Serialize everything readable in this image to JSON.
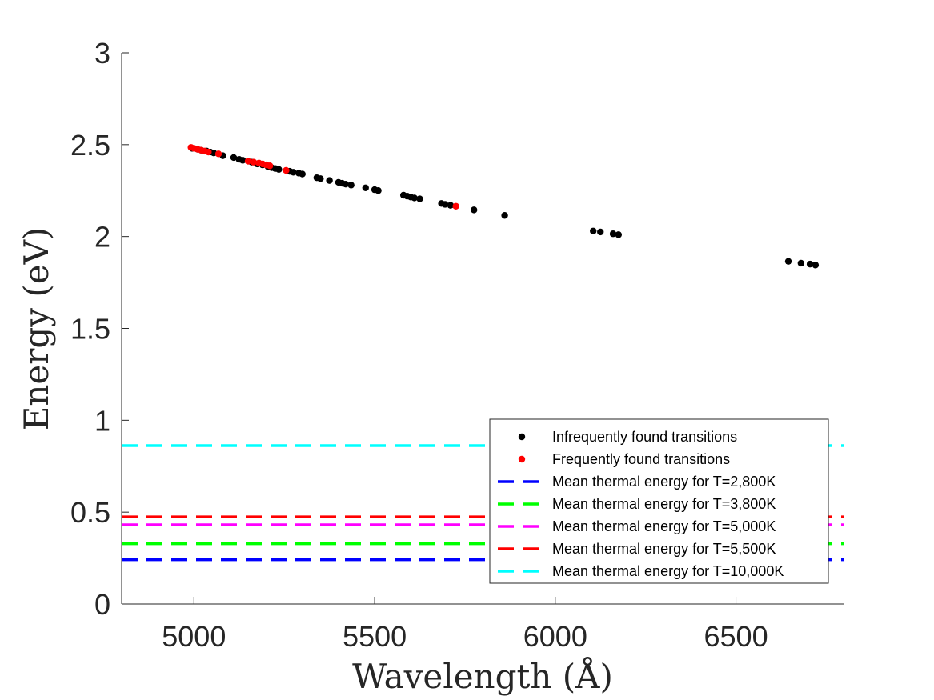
{
  "chart_data": {
    "type": "scatter",
    "title": "",
    "xlabel": "Wavelength (Å)",
    "ylabel": "Energy (eV)",
    "xlim": [
      4800,
      6800
    ],
    "ylim": [
      0,
      3
    ],
    "xticks": [
      5000,
      5500,
      6000,
      6500
    ],
    "yticks": [
      0,
      0.5,
      1,
      1.5,
      2,
      2.5,
      3
    ],
    "xtick_labels": [
      "5000",
      "5500",
      "6000",
      "6500"
    ],
    "ytick_labels": [
      "0",
      "0.5",
      "1",
      "1.5",
      "2",
      "2.5",
      "3"
    ],
    "grid": false,
    "legend_position": "bottom-right",
    "series": [
      {
        "name": "Infrequently found transitions",
        "kind": "scatter",
        "color": "#000000",
        "x": [
          4995,
          5010,
          5020,
          5035,
          5045,
          5055,
          5080,
          5110,
          5125,
          5135,
          5160,
          5175,
          5190,
          5205,
          5215,
          5225,
          5235,
          5265,
          5275,
          5290,
          5300,
          5340,
          5350,
          5375,
          5400,
          5410,
          5420,
          5435,
          5475,
          5500,
          5510,
          5580,
          5590,
          5600,
          5610,
          5625,
          5685,
          5695,
          5710,
          5775,
          5860,
          6105,
          6125,
          6160,
          6175,
          6645,
          6680,
          6705,
          6720
        ],
        "y": [
          2.48,
          2.475,
          2.47,
          2.465,
          2.46,
          2.455,
          2.44,
          2.43,
          2.42,
          2.415,
          2.405,
          2.395,
          2.39,
          2.38,
          2.375,
          2.37,
          2.365,
          2.355,
          2.35,
          2.345,
          2.34,
          2.32,
          2.315,
          2.305,
          2.295,
          2.29,
          2.285,
          2.28,
          2.265,
          2.255,
          2.25,
          2.225,
          2.22,
          2.215,
          2.21,
          2.205,
          2.18,
          2.175,
          2.17,
          2.145,
          2.115,
          2.03,
          2.025,
          2.015,
          2.01,
          1.865,
          1.855,
          1.85,
          1.845
        ]
      },
      {
        "name": "Frequently found transitions",
        "kind": "scatter",
        "color": "#ff0000",
        "x": [
          4992,
          5000,
          5010,
          5020,
          5030,
          5040,
          5068,
          5150,
          5165,
          5180,
          5190,
          5200,
          5210,
          5255,
          5725
        ],
        "y": [
          2.485,
          2.48,
          2.475,
          2.47,
          2.465,
          2.46,
          2.45,
          2.41,
          2.405,
          2.4,
          2.395,
          2.39,
          2.385,
          2.36,
          2.165
        ]
      },
      {
        "name": "Mean thermal energy for T=2,800K",
        "kind": "hline",
        "color": "#0000ff",
        "y": 0.241
      },
      {
        "name": "Mean thermal energy for T=3,800K",
        "kind": "hline",
        "color": "#00ff00",
        "y": 0.328
      },
      {
        "name": "Mean thermal energy for T=5,000K",
        "kind": "hline",
        "color": "#ff00ff",
        "y": 0.431
      },
      {
        "name": "Mean thermal energy for T=5,500K",
        "kind": "hline",
        "color": "#ff0000",
        "y": 0.474
      },
      {
        "name": "Mean thermal energy for T=10,000K",
        "kind": "hline",
        "color": "#00ffff",
        "y": 0.862
      }
    ]
  }
}
